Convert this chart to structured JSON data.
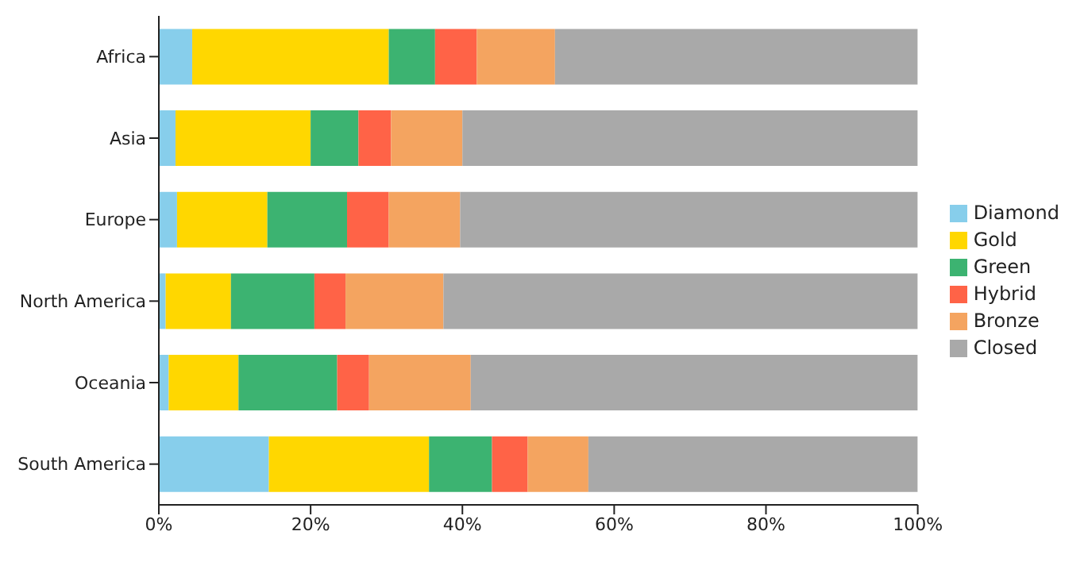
{
  "chart_data": {
    "type": "bar",
    "orientation": "horizontal",
    "stacked": true,
    "categories": [
      "Africa",
      "Asia",
      "Europe",
      "North America",
      "Oceania",
      "South America"
    ],
    "series": [
      {
        "name": "Diamond",
        "color": "#87ceeb",
        "values": [
          4.4,
          2.2,
          2.4,
          0.9,
          1.3,
          14.5
        ]
      },
      {
        "name": "Gold",
        "color": "#ffd700",
        "values": [
          25.9,
          17.8,
          11.9,
          8.6,
          9.2,
          21.1
        ]
      },
      {
        "name": "Green",
        "color": "#3cb371",
        "values": [
          6.1,
          6.3,
          10.5,
          11.0,
          13.0,
          8.3
        ]
      },
      {
        "name": "Hybrid",
        "color": "#ff6347",
        "values": [
          5.5,
          4.3,
          5.5,
          4.1,
          4.2,
          4.7
        ]
      },
      {
        "name": "Bronze",
        "color": "#f4a460",
        "values": [
          10.3,
          9.4,
          9.4,
          12.9,
          13.4,
          8.0
        ]
      },
      {
        "name": "Closed",
        "color": "#a9a9a9",
        "values": [
          47.8,
          60.0,
          60.3,
          62.5,
          58.9,
          43.4
        ]
      }
    ],
    "xlim": [
      0,
      100
    ],
    "xticks": [
      {
        "value": 0,
        "label": "0%"
      },
      {
        "value": 20,
        "label": "20%"
      },
      {
        "value": 40,
        "label": "40%"
      },
      {
        "value": 60,
        "label": "60%"
      },
      {
        "value": 80,
        "label": "80%"
      },
      {
        "value": 100,
        "label": "100%"
      }
    ],
    "legend": "right",
    "grid": false
  }
}
